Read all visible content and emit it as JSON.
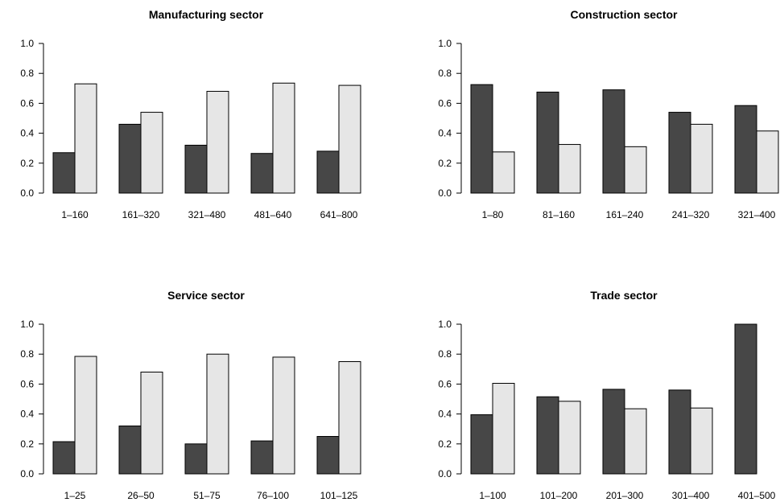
{
  "colors": {
    "dark_bar": "#474747",
    "light_bar": "#e6e6e6",
    "bar_border": "#000000"
  },
  "chart_data": [
    {
      "type": "bar",
      "title": "Manufacturing sector",
      "categories": [
        "1–160",
        "161–320",
        "321–480",
        "481–640",
        "641–800"
      ],
      "series": [
        {
          "color": "#474747",
          "values": [
            0.27,
            0.46,
            0.32,
            0.265,
            0.28
          ]
        },
        {
          "color": "#e6e6e6",
          "values": [
            0.73,
            0.54,
            0.68,
            0.735,
            0.72
          ]
        }
      ],
      "xlabel": "",
      "ylabel": "",
      "ylim": [
        0,
        1.0
      ],
      "yticks": [
        0.0,
        0.2,
        0.4,
        0.6,
        0.8,
        1.0
      ],
      "ytick_labels": [
        "0.0",
        "0.2",
        "0.4",
        "0.6",
        "0.8",
        "1.0"
      ],
      "grid": false,
      "legend": "none"
    },
    {
      "type": "bar",
      "title": "Construction sector",
      "categories": [
        "1–80",
        "81–160",
        "161–240",
        "241–320",
        "321–400"
      ],
      "series": [
        {
          "color": "#474747",
          "values": [
            0.725,
            0.675,
            0.69,
            0.54,
            0.585
          ]
        },
        {
          "color": "#e6e6e6",
          "values": [
            0.275,
            0.325,
            0.31,
            0.46,
            0.415
          ]
        }
      ],
      "xlabel": "",
      "ylabel": "",
      "ylim": [
        0,
        1.0
      ],
      "yticks": [
        0.0,
        0.2,
        0.4,
        0.6,
        0.8,
        1.0
      ],
      "ytick_labels": [
        "0.0",
        "0.2",
        "0.4",
        "0.6",
        "0.8",
        "1.0"
      ],
      "grid": false,
      "legend": "none"
    },
    {
      "type": "bar",
      "title": "Service sector",
      "categories": [
        "1–25",
        "26–50",
        "51–75",
        "76–100",
        "101–125"
      ],
      "series": [
        {
          "color": "#474747",
          "values": [
            0.215,
            0.32,
            0.2,
            0.22,
            0.25
          ]
        },
        {
          "color": "#e6e6e6",
          "values": [
            0.785,
            0.68,
            0.8,
            0.78,
            0.75
          ]
        }
      ],
      "xlabel": "",
      "ylabel": "",
      "ylim": [
        0,
        1.0
      ],
      "yticks": [
        0.0,
        0.2,
        0.4,
        0.6,
        0.8,
        1.0
      ],
      "ytick_labels": [
        "0.0",
        "0.2",
        "0.4",
        "0.6",
        "0.8",
        "1.0"
      ],
      "grid": false,
      "legend": "none"
    },
    {
      "type": "bar",
      "title": "Trade sector",
      "categories": [
        "1–100",
        "101–200",
        "201–300",
        "301–400",
        "401–500"
      ],
      "series": [
        {
          "color": "#474747",
          "values": [
            0.395,
            0.515,
            0.565,
            0.56,
            1.0
          ]
        },
        {
          "color": "#e6e6e6",
          "values": [
            0.605,
            0.485,
            0.435,
            0.44,
            0.0
          ]
        }
      ],
      "xlabel": "",
      "ylabel": "",
      "ylim": [
        0,
        1.0
      ],
      "yticks": [
        0.0,
        0.2,
        0.4,
        0.6,
        0.8,
        1.0
      ],
      "ytick_labels": [
        "0.0",
        "0.2",
        "0.4",
        "0.6",
        "0.8",
        "1.0"
      ],
      "grid": false,
      "legend": "none"
    }
  ]
}
